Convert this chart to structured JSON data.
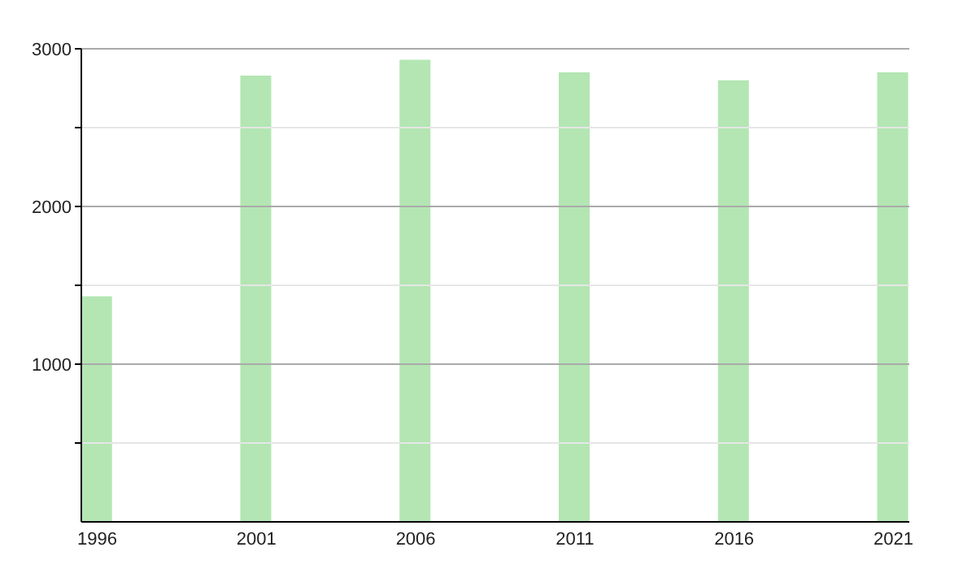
{
  "chart_data": {
    "type": "bar",
    "x": [
      1996,
      2001,
      2006,
      2011,
      2016,
      2021
    ],
    "values": [
      1430,
      2830,
      2930,
      2850,
      2800,
      2850
    ],
    "color": "#b3e6b3",
    "xlim": [
      1995.5,
      2021.5
    ],
    "xticks": [
      1996,
      2001,
      2006,
      2011,
      2016,
      2021
    ],
    "ylim": [
      0,
      3000
    ],
    "yticks": [
      {
        "value": 500,
        "label": null
      },
      1000,
      {
        "value": 1500,
        "label": null
      },
      2000,
      {
        "value": 2500,
        "label": null
      },
      3000
    ],
    "grid": "y"
  }
}
